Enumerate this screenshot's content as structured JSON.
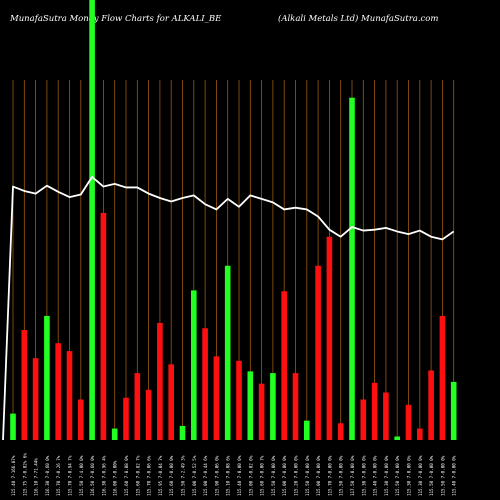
{
  "header": {
    "left": "MunafaSutra  Money Flow  Charts for ALKALI_BE",
    "right": "(Alkali   Metals Ltd) MunafaSutra.com"
  },
  "chart_data": {
    "type": "bar",
    "title": "MunafaSutra  Money Flow  Charts for ALKALI_BE",
    "subtitle": "(Alkali   Metals Ltd) MunafaSutra.com",
    "grid": true,
    "bars": [
      {
        "color": "green",
        "value": 30,
        "label": "115.40 7-166.87%"
      },
      {
        "color": "red",
        "value": 125,
        "label": "115.75 7-0.02% 6%"
      },
      {
        "color": "red",
        "value": 93,
        "label": "116.10 7-71.44%"
      },
      {
        "color": "green",
        "value": 141,
        "label": "116.30 7-0.60 0%"
      },
      {
        "color": "red",
        "value": 110,
        "label": "115.70 7-0.26 7%"
      },
      {
        "color": "red",
        "value": 101,
        "label": "115.70 7-0.94 7%"
      },
      {
        "color": "red",
        "value": 46,
        "label": "115.50 7-4.00 0%"
      },
      {
        "color": "green",
        "value": 500,
        "label": "116.50 7-0.60 0%"
      },
      {
        "color": "red",
        "value": 258,
        "label": "116.30 7-0.96 4%"
      },
      {
        "color": "green",
        "value": 13,
        "label": "116.00 7-0.00%"
      },
      {
        "color": "red",
        "value": 48,
        "label": "115.60 7-8.08 0%"
      },
      {
        "color": "red",
        "value": 76,
        "label": "115.60 7-0.82 7%"
      },
      {
        "color": "red",
        "value": 57,
        "label": "115.70 7-0.06 6%"
      },
      {
        "color": "red",
        "value": 133,
        "label": "115.95 7-0.04 7%"
      },
      {
        "color": "red",
        "value": 86,
        "label": "115.60 7-0.00 0%"
      },
      {
        "color": "green",
        "value": 16,
        "label": "115.50 7-2.49 3%"
      },
      {
        "color": "green",
        "value": 170,
        "label": "115.00 7-0.52 5%"
      },
      {
        "color": "red",
        "value": 127,
        "label": "115.00 7-0.44 6%"
      },
      {
        "color": "red",
        "value": 95,
        "label": "115.90 7-0.06 0%"
      },
      {
        "color": "green",
        "value": 198,
        "label": "115.10 7-0.08 6%"
      },
      {
        "color": "red",
        "value": 90,
        "label": "115.40 7-0.00 0%"
      },
      {
        "color": "green",
        "value": 78,
        "label": "115.00 7-0.02 0%"
      },
      {
        "color": "red",
        "value": 64,
        "label": "115.60 7-0.00 7%"
      },
      {
        "color": "green",
        "value": 76,
        "label": "115.50 7-0.00 0%"
      },
      {
        "color": "red",
        "value": 169,
        "label": "115.00 7-0.00 0%"
      },
      {
        "color": "red",
        "value": 76,
        "label": "115.20 7-0.00 0%"
      },
      {
        "color": "green",
        "value": 22,
        "label": "115.50 7-0.00 0%"
      },
      {
        "color": "red",
        "value": 198,
        "label": "115.00 7-0.00 0%"
      },
      {
        "color": "red",
        "value": 231,
        "label": "115.70 7-0.00 0%"
      },
      {
        "color": "red",
        "value": 19,
        "label": "115.50 7-0.00 0%"
      },
      {
        "color": "green",
        "value": 389,
        "label": "117.50 7-0.00 0%"
      },
      {
        "color": "red",
        "value": 46,
        "label": "115.30 7-0.00 0%"
      },
      {
        "color": "red",
        "value": 65,
        "label": "115.40 7-0.00 0%"
      },
      {
        "color": "red",
        "value": 54,
        "label": "115.30 7-0.00 0%"
      },
      {
        "color": "green",
        "value": 4,
        "label": "115.50 7-0.00 0%"
      },
      {
        "color": "red",
        "value": 40,
        "label": "115.30 7-0.00 0%"
      },
      {
        "color": "red",
        "value": 13,
        "label": "115.30 7-0.00 0%"
      },
      {
        "color": "red",
        "value": 79,
        "label": "115.50 7-0.00 0%"
      },
      {
        "color": "red",
        "value": 141,
        "label": "115.50 7-0.00 0%"
      },
      {
        "color": "green",
        "value": 66,
        "label": "115.40 7-0.00 0%"
      }
    ],
    "price_line": [
      0,
      288,
      283,
      280,
      289,
      282,
      276,
      279,
      299,
      288,
      291,
      287,
      287,
      280,
      275,
      271,
      275,
      278,
      268,
      262,
      274,
      265,
      278,
      274,
      270,
      262,
      264,
      262,
      254,
      239,
      231,
      242,
      238,
      239,
      241,
      237,
      234,
      238,
      231,
      228,
      237
    ]
  },
  "colors": {
    "background": "#000000",
    "grid": "#9a5a10",
    "up": "#22ff22",
    "down": "#ff1010",
    "line": "#ffffff",
    "text": "#ffffff"
  }
}
